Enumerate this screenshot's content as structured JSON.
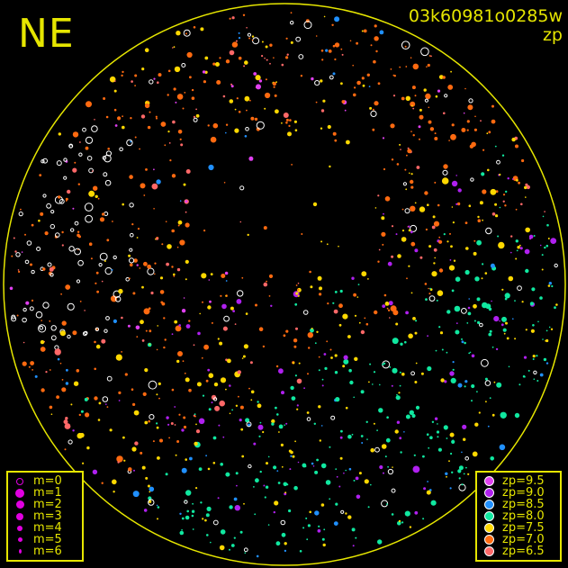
{
  "corner_label": "NE",
  "title": "03k60981o0285w",
  "subtitle": "zp",
  "colors": {
    "frame": "#e6e600",
    "background": "#000000",
    "unmatched": "#ffffff"
  },
  "chart_data": {
    "type": "scatter",
    "title": "03k60981o0285w",
    "subtitle": "zp",
    "grid": false,
    "magnitude_legend": {
      "placement": "bottom-left",
      "items": [
        {
          "label": "m=0",
          "style": "ring"
        },
        {
          "label": "m=1",
          "style": "dot"
        },
        {
          "label": "m=2",
          "style": "dot"
        },
        {
          "label": "m=3",
          "style": "dot"
        },
        {
          "label": "m=4",
          "style": "dot"
        },
        {
          "label": "m=5",
          "style": "dot"
        },
        {
          "label": "m=6",
          "style": "dot"
        }
      ]
    },
    "zp_legend": {
      "placement": "bottom-right",
      "items": [
        {
          "label": "zp=9.5",
          "zp": 9.5,
          "color": "#e040f0"
        },
        {
          "label": "zp=9.0",
          "zp": 9.0,
          "color": "#b020f0"
        },
        {
          "label": "zp=8.5",
          "zp": 8.5,
          "color": "#2090ff"
        },
        {
          "label": "zp=8.0",
          "zp": 8.0,
          "color": "#10e8a0"
        },
        {
          "label": "zp=7.5",
          "zp": 7.5,
          "color": "#ffd800"
        },
        {
          "label": "zp=7.0",
          "zp": 7.0,
          "color": "#ff6a10"
        },
        {
          "label": "zp=6.5",
          "zp": 6.5,
          "color": "#ff6868"
        }
      ]
    }
  }
}
